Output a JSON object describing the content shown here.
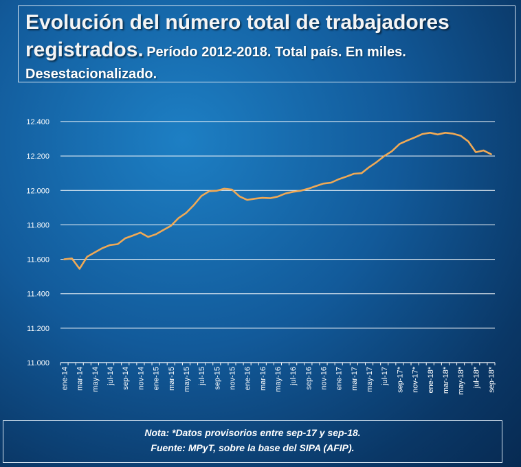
{
  "header": {
    "title_main_line1": "Evolución del número total de trabajadores",
    "title_main_line2": "registrados.",
    "title_sub_line2": "Período 2012-2018. Total país. En miles.",
    "title_sub_line3": "Desestacionalizado."
  },
  "footer": {
    "note": "Nota: *Datos provisorios entre sep-17 y sep-18.",
    "source": "Fuente: MPyT, sobre la base del SIPA (AFIP)."
  },
  "colors": {
    "line": "#f0a955",
    "grid": "#ffffff",
    "axis": "#ffffff"
  },
  "chart_data": {
    "type": "line",
    "title": "Evolución del número total de trabajadores registrados. Período 2012-2018. Total país. En miles. Desestacionalizado.",
    "xlabel": "",
    "ylabel": "",
    "ylim": [
      11000,
      12400
    ],
    "yticks": [
      11000,
      11200,
      11400,
      11600,
      11800,
      12000,
      12200,
      12400
    ],
    "ytick_labels": [
      "11.000",
      "11.200",
      "11.400",
      "11.600",
      "11.800",
      "12.000",
      "12.200",
      "12.400"
    ],
    "grid": true,
    "legend": "none",
    "x": [
      "ene-14",
      "feb-14",
      "mar-14",
      "abr-14",
      "may-14",
      "jun-14",
      "jul-14",
      "ago-14",
      "sep-14",
      "oct-14",
      "nov-14",
      "dic-14",
      "ene-15",
      "feb-15",
      "mar-15",
      "abr-15",
      "may-15",
      "jun-15",
      "jul-15",
      "ago-15",
      "sep-15",
      "oct-15",
      "nov-15",
      "dic-15",
      "ene-16",
      "feb-16",
      "mar-16",
      "abr-16",
      "may-16",
      "jun-16",
      "jul-16",
      "ago-16",
      "sep-16",
      "oct-16",
      "nov-16",
      "dic-16",
      "ene-17",
      "feb-17",
      "mar-17",
      "abr-17",
      "may-17",
      "jun-17",
      "jul-17",
      "ago-17",
      "sep-17*",
      "oct-17*",
      "nov-17*",
      "dic-17*",
      "ene-18*",
      "feb-18*",
      "mar-18*",
      "abr-18*",
      "may-18*",
      "jun-18*",
      "jul-18*",
      "ago-18*",
      "sep-18*"
    ],
    "x_tick_labels": [
      "ene-14",
      "mar-14",
      "may-14",
      "jul-14",
      "sep-14",
      "nov-14",
      "ene-15",
      "mar-15",
      "may-15",
      "jul-15",
      "sep-15",
      "nov-15",
      "ene-16",
      "mar-16",
      "may-16",
      "jul-16",
      "sep-16",
      "nov-16",
      "ene-17",
      "mar-17",
      "may-17",
      "jul-17",
      "sep-17*",
      "nov-17*",
      "ene-18*",
      "mar-18*",
      "may-18*",
      "jul-18*",
      "sep-18*"
    ],
    "series": [
      {
        "values": [
          11600,
          11605,
          11545,
          11615,
          11640,
          11665,
          11683,
          11688,
          11722,
          11738,
          11755,
          11730,
          11745,
          11770,
          11795,
          11840,
          11870,
          11915,
          11968,
          11995,
          11998,
          12010,
          12005,
          11965,
          11945,
          11952,
          11957,
          11955,
          11964,
          11982,
          11992,
          11998,
          12010,
          12025,
          12040,
          12045,
          12065,
          12080,
          12097,
          12100,
          12135,
          12165,
          12200,
          12228,
          12270,
          12290,
          12308,
          12328,
          12335,
          12325,
          12335,
          12330,
          12318,
          12285,
          12222,
          12232,
          12210
        ]
      }
    ]
  }
}
